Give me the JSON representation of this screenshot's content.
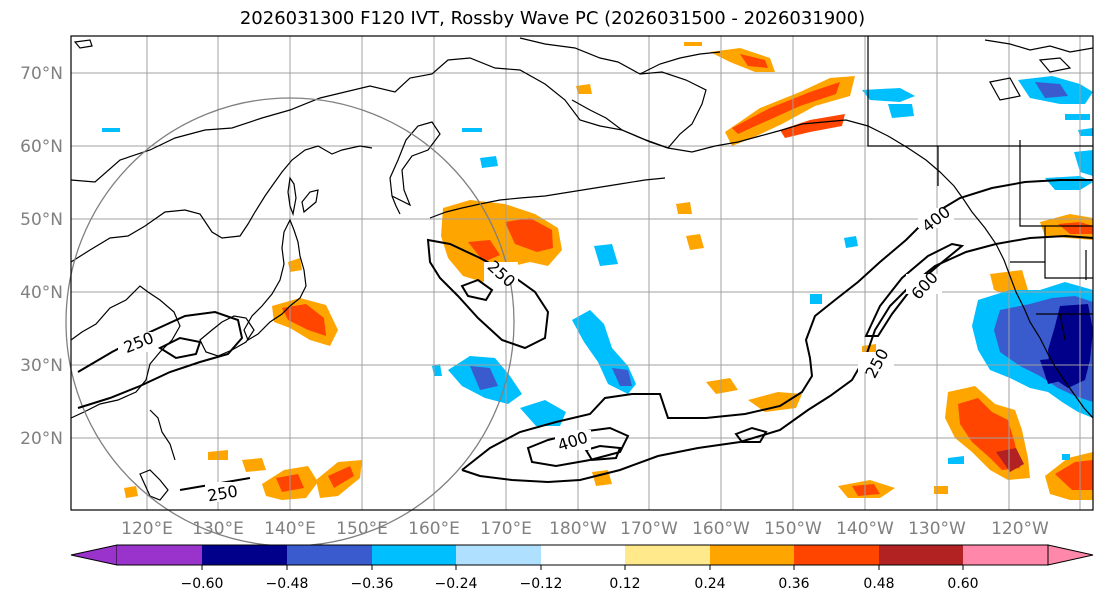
{
  "title": "2026031300 F120 IVT, Rossby Wave PC (2026031500 - 2026031900)",
  "axes": {
    "lat_labels": [
      "70°N",
      "60°N",
      "50°N",
      "40°N",
      "30°N",
      "20°N"
    ],
    "lon_labels": [
      "120°E",
      "130°E",
      "140°E",
      "150°E",
      "160°E",
      "170°E",
      "180°W",
      "170°W",
      "160°W",
      "150°W",
      "140°W",
      "130°W",
      "120°W"
    ]
  },
  "ivt_contours": {
    "labels": [
      "250",
      "250",
      "400",
      "250",
      "400",
      "600",
      "250"
    ]
  },
  "colorbar": {
    "tick_labels": [
      "−0.60",
      "−0.48",
      "−0.36",
      "−0.24",
      "−0.12",
      "0.12",
      "0.24",
      "0.36",
      "0.48",
      "0.60"
    ],
    "colors": [
      "#9933cc",
      "#00008b",
      "#3a5bcd",
      "#00bfff",
      "#b0e0ff",
      "#ffffff",
      "#ffe98a",
      "#ffa500",
      "#ff4500",
      "#b22222",
      "#ff88aa"
    ]
  },
  "colors": {
    "neg_strong": "#00008b",
    "neg_mid": "#3a5bcd",
    "neg_light": "#00bfff",
    "pos_light": "#ffa500",
    "pos_mid": "#ff4500",
    "pos_strong": "#b22222",
    "grid": "#a0a0a0",
    "circle": "#808080"
  }
}
